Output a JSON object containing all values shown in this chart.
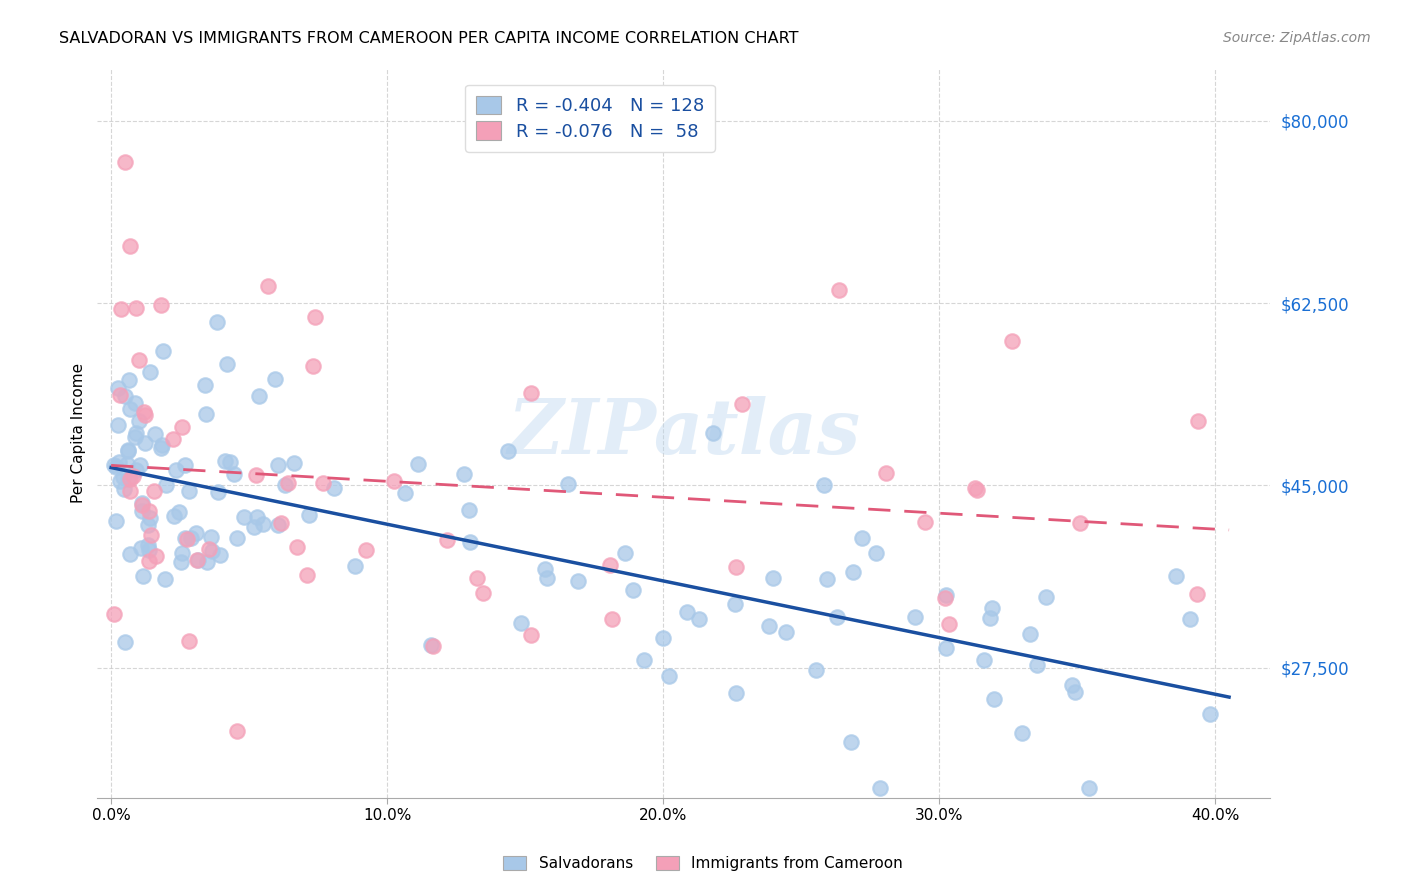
{
  "title": "SALVADORAN VS IMMIGRANTS FROM CAMEROON PER CAPITA INCOME CORRELATION CHART",
  "source": "Source: ZipAtlas.com",
  "ylabel": "Per Capita Income",
  "xlabel_ticks": [
    "0.0%",
    "10.0%",
    "20.0%",
    "30.0%",
    "40.0%"
  ],
  "xlabel_tick_vals": [
    0.0,
    0.1,
    0.2,
    0.3,
    0.4
  ],
  "ytick_labels": [
    "$27,500",
    "$45,000",
    "$62,500",
    "$80,000"
  ],
  "ytick_vals": [
    27500,
    45000,
    62500,
    80000
  ],
  "ylim": [
    15000,
    85000
  ],
  "xlim": [
    -0.005,
    0.42
  ],
  "legend1_label": "R = -0.404   N = 128",
  "legend2_label": "R = -0.076   N =  58",
  "legend_title1": "Salvadorans",
  "legend_title2": "Immigrants from Cameroon",
  "blue_color": "#a8c8e8",
  "pink_color": "#f4a0b8",
  "blue_line_color": "#1a4fa0",
  "pink_line_color": "#e05878",
  "grid_color": "#cccccc",
  "watermark": "ZIPatlas",
  "blue_R": -0.404,
  "blue_N": 128,
  "pink_R": -0.076,
  "pink_N": 58
}
